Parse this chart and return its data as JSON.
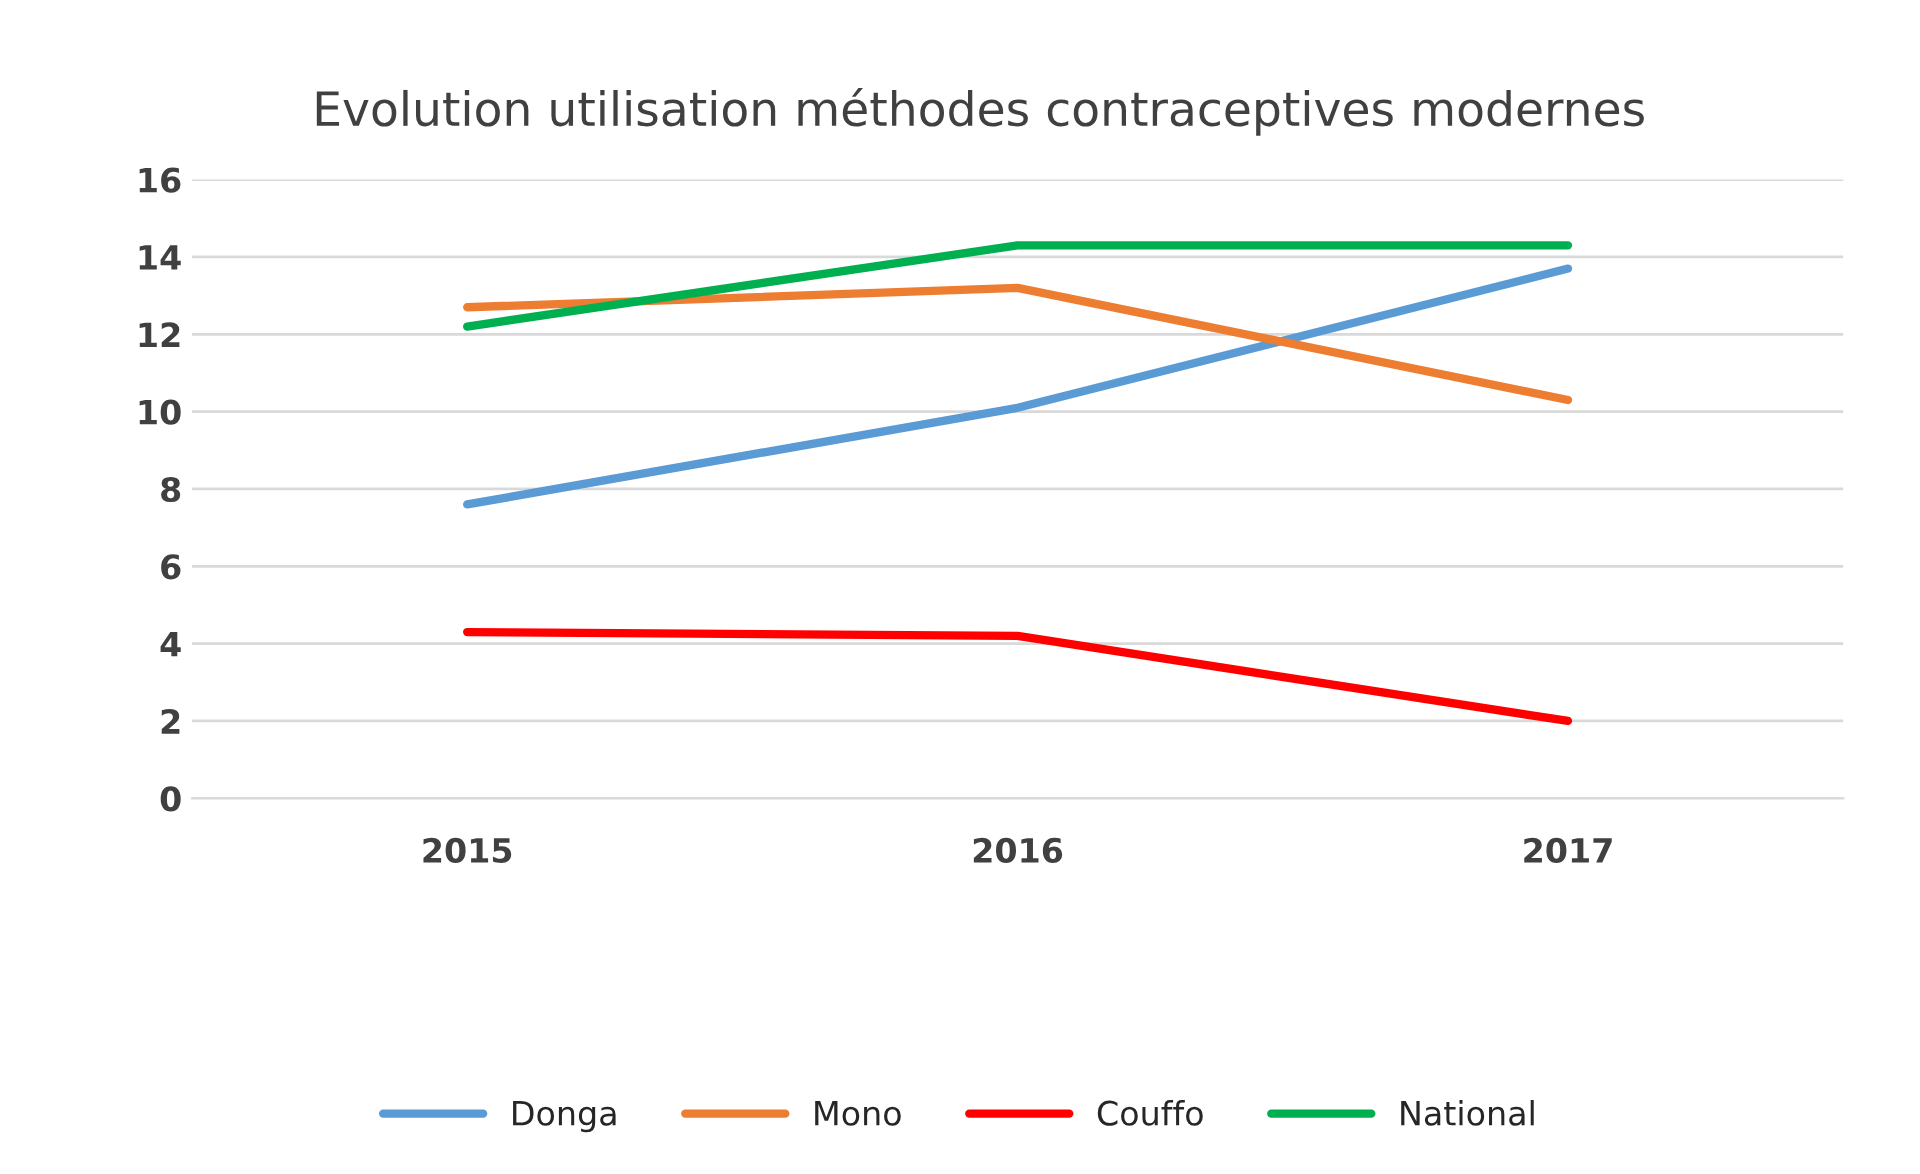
{
  "chart_data": {
    "type": "line",
    "title": "Evolution utilisation méthodes contraceptives modernes",
    "categories": [
      "2015",
      "2016",
      "2017"
    ],
    "series": [
      {
        "name": "Donga",
        "color": "#5b9bd5",
        "values": [
          7.6,
          10.1,
          13.7
        ]
      },
      {
        "name": "Mono",
        "color": "#ed7d31",
        "values": [
          12.7,
          13.2,
          10.3
        ]
      },
      {
        "name": "Couffo",
        "color": "#ff0000",
        "values": [
          4.3,
          4.2,
          2.0
        ]
      },
      {
        "name": "National",
        "color": "#00b050",
        "values": [
          12.2,
          14.3,
          14.3
        ]
      }
    ],
    "ylim": [
      0,
      16
    ],
    "yticks": [
      0,
      2,
      4,
      6,
      8,
      10,
      12,
      14,
      16
    ],
    "grid": "y",
    "legend": "bottom",
    "marker": "none",
    "line_style": "solid"
  }
}
